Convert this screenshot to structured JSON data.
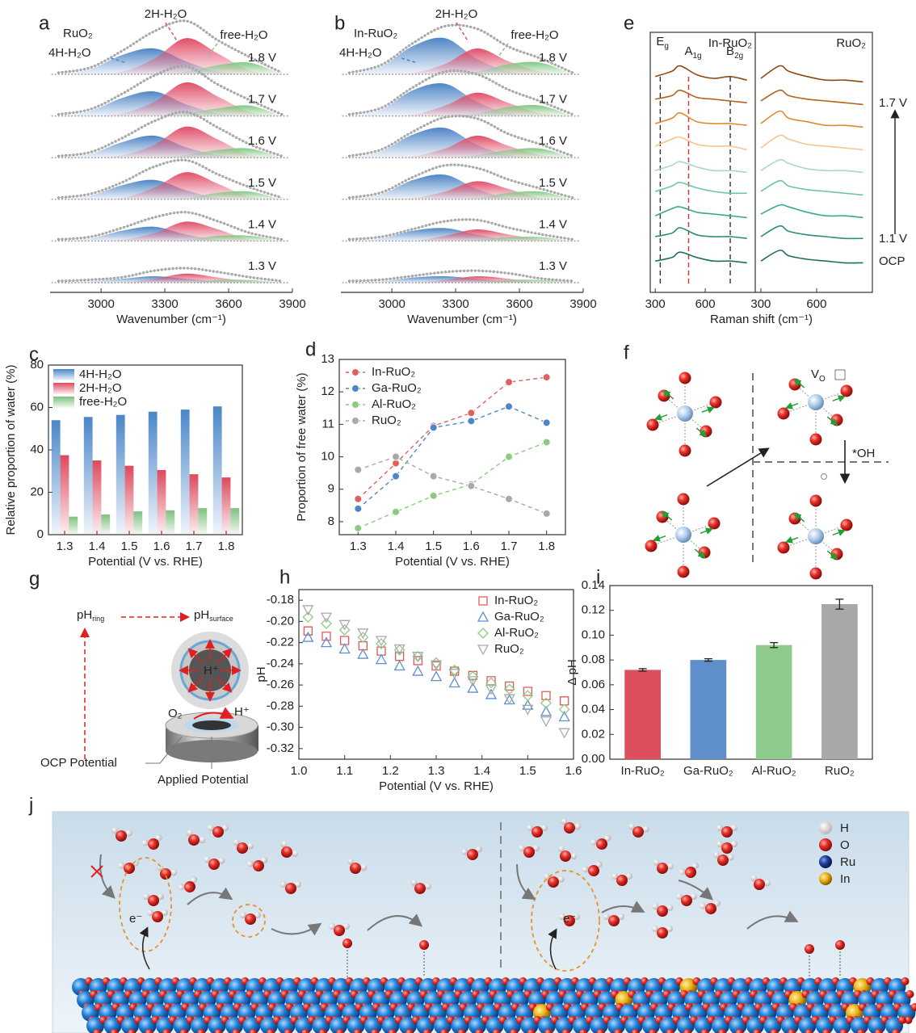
{
  "chart_data": [
    {
      "panel": "a",
      "type": "spectra",
      "title": "RuO₂",
      "x_label": "Wavenumber (cm⁻¹)",
      "x": [
        2800,
        2950,
        3100,
        3250,
        3400,
        3550,
        3700,
        3850
      ],
      "xlim": [
        2760,
        3900
      ],
      "xticks": [
        3000,
        3300,
        3600,
        3900
      ],
      "components": [
        {
          "name": "4H-H₂O",
          "color": "#4f86c6"
        },
        {
          "name": "2H-H₂O",
          "color": "#e0506a"
        },
        {
          "name": "free-H₂O",
          "color": "#82c785"
        }
      ],
      "traces": [
        {
          "label": "1.8 V",
          "values": [
            [
              0,
              4,
              15,
              20,
              10,
              2,
              0,
              0
            ],
            [
              0,
              0,
              2,
              12,
              28,
              16,
              3,
              0
            ],
            [
              0,
              0,
              0,
              0,
              2,
              7,
              9,
              0
            ]
          ]
        },
        {
          "label": "1.7 V",
          "values": [
            [
              0,
              4,
              14,
              19,
              9,
              2,
              0,
              0
            ],
            [
              0,
              0,
              2,
              11,
              26,
              15,
              3,
              0
            ],
            [
              0,
              0,
              0,
              0,
              2,
              6,
              8,
              0
            ]
          ]
        },
        {
          "label": "1.6 V",
          "values": [
            [
              0,
              3,
              12,
              17,
              8,
              2,
              0,
              0
            ],
            [
              0,
              0,
              2,
              10,
              24,
              14,
              2,
              0
            ],
            [
              0,
              0,
              0,
              0,
              2,
              6,
              7,
              0
            ]
          ]
        },
        {
          "label": "1.5 V",
          "values": [
            [
              0,
              3,
              11,
              15,
              7,
              1,
              0,
              0
            ],
            [
              0,
              0,
              1,
              9,
              21,
              12,
              2,
              0
            ],
            [
              0,
              0,
              0,
              0,
              1,
              5,
              6,
              0
            ]
          ]
        },
        {
          "label": "1.4 V",
          "values": [
            [
              0,
              2,
              8,
              11,
              5,
              1,
              0,
              0
            ],
            [
              0,
              0,
              1,
              6,
              15,
              9,
              1,
              0
            ],
            [
              0,
              0,
              0,
              0,
              1,
              4,
              4,
              0
            ]
          ]
        },
        {
          "label": "1.3 V",
          "values": [
            [
              0,
              1,
              3,
              5,
              3,
              1,
              0,
              0
            ],
            [
              0,
              0,
              0,
              3,
              7,
              4,
              1,
              0
            ],
            [
              0,
              0,
              0,
              0,
              0,
              2,
              2,
              0
            ]
          ]
        }
      ]
    },
    {
      "panel": "b",
      "type": "spectra",
      "title": "In-RuO₂",
      "x_label": "Wavenumber (cm⁻¹)",
      "x": [
        2800,
        2950,
        3100,
        3250,
        3400,
        3550,
        3700,
        3850
      ],
      "xlim": [
        2760,
        3900
      ],
      "xticks": [
        3000,
        3300,
        3600,
        3900
      ],
      "components": [
        {
          "name": "4H-H₂O",
          "color": "#4f86c6"
        },
        {
          "name": "2H-H₂O",
          "color": "#e0506a"
        },
        {
          "name": "free-H₂O",
          "color": "#82c785"
        }
      ],
      "traces": [
        {
          "label": "1.8 V",
          "values": [
            [
              0,
              6,
              22,
              28,
              12,
              2,
              0,
              0
            ],
            [
              0,
              0,
              1,
              8,
              20,
              10,
              2,
              0
            ],
            [
              0,
              0,
              0,
              0,
              2,
              8,
              9,
              0
            ]
          ]
        },
        {
          "label": "1.7 V",
          "values": [
            [
              0,
              5,
              20,
              25,
              11,
              2,
              0,
              0
            ],
            [
              0,
              0,
              1,
              8,
              18,
              10,
              2,
              0
            ],
            [
              0,
              0,
              0,
              0,
              2,
              7,
              8,
              0
            ]
          ]
        },
        {
          "label": "1.6 V",
          "values": [
            [
              0,
              5,
              18,
              23,
              10,
              2,
              0,
              0
            ],
            [
              0,
              0,
              1,
              7,
              17,
              9,
              2,
              0
            ],
            [
              0,
              0,
              0,
              0,
              2,
              6,
              7,
              0
            ]
          ]
        },
        {
          "label": "1.5 V",
          "values": [
            [
              0,
              4,
              15,
              19,
              8,
              1,
              0,
              0
            ],
            [
              0,
              0,
              1,
              6,
              14,
              8,
              1,
              0
            ],
            [
              0,
              0,
              0,
              0,
              1,
              5,
              6,
              0
            ]
          ]
        },
        {
          "label": "1.4 V",
          "values": [
            [
              0,
              2,
              8,
              10,
              5,
              1,
              0,
              0
            ],
            [
              0,
              0,
              0,
              4,
              9,
              5,
              1,
              0
            ],
            [
              0,
              0,
              0,
              0,
              1,
              3,
              3,
              0
            ]
          ]
        },
        {
          "label": "1.3 V",
          "values": [
            [
              0,
              1,
              4,
              5,
              3,
              1,
              0,
              0
            ],
            [
              0,
              0,
              0,
              2,
              5,
              3,
              0,
              0
            ],
            [
              0,
              0,
              0,
              0,
              0,
              2,
              2,
              0
            ]
          ]
        }
      ]
    },
    {
      "panel": "c",
      "type": "bar",
      "x_label": "Potential (V vs. RHE)",
      "y_label": "Relative proportion of water (%)",
      "categories": [
        "1.3",
        "1.4",
        "1.5",
        "1.6",
        "1.7",
        "1.8"
      ],
      "series": [
        {
          "name": "4H-H₂O",
          "color": "#4a86c8",
          "values": [
            54,
            55.5,
            56.5,
            58,
            59,
            60.5
          ]
        },
        {
          "name": "2H-H₂O",
          "color": "#dc4a5e",
          "values": [
            37.5,
            35,
            32.5,
            30.5,
            28.5,
            27
          ]
        },
        {
          "name": "free-H₂O",
          "color": "#7cc17e",
          "values": [
            8.5,
            9.5,
            11,
            11.5,
            12.5,
            12.5
          ]
        }
      ],
      "ylim": [
        0,
        80
      ],
      "yticks": [
        0,
        20,
        40,
        60,
        80
      ]
    },
    {
      "panel": "d",
      "type": "line",
      "x_label": "Potential (V vs. RHE)",
      "y_label": "Proportion of free water (%)",
      "x": [
        1.3,
        1.4,
        1.5,
        1.6,
        1.7,
        1.8
      ],
      "xlim": [
        1.25,
        1.85
      ],
      "xticks": [
        1.3,
        1.4,
        1.5,
        1.6,
        1.7,
        1.8
      ],
      "ylim": [
        7.6,
        13
      ],
      "yticks": [
        8,
        9,
        10,
        11,
        12,
        13
      ],
      "series": [
        {
          "name": "In-RuO₂",
          "color": "#e0605e",
          "values": [
            8.7,
            9.8,
            10.95,
            11.35,
            12.3,
            12.45
          ]
        },
        {
          "name": "Ga-RuO₂",
          "color": "#4d86c4",
          "values": [
            8.4,
            9.4,
            10.9,
            11.1,
            11.55,
            11.05
          ]
        },
        {
          "name": "Al-RuO₂",
          "color": "#8acb7f",
          "values": [
            7.8,
            8.3,
            8.8,
            9.15,
            10.0,
            10.45
          ]
        },
        {
          "name": "RuO₂",
          "color": "#a9a9a9",
          "values": [
            9.6,
            10.0,
            9.4,
            9.1,
            8.7,
            8.25
          ]
        }
      ]
    },
    {
      "panel": "e",
      "type": "raman",
      "x_label": "Raman shift (cm⁻¹)",
      "frames": [
        "In-RuO₂",
        "RuO₂"
      ],
      "x": [
        300,
        400,
        450,
        550,
        650,
        750,
        850
      ],
      "xlim": [
        270,
        900
      ],
      "xticks": [
        300,
        600
      ],
      "markers": [
        {
          "text": "E",
          "sub": "g",
          "x": 330,
          "color": "#333333"
        },
        {
          "text": "A",
          "sub": "1g",
          "x": 500,
          "color": "#d9302c"
        },
        {
          "text": "B",
          "sub": "2g",
          "x": 750,
          "color": "#333333"
        }
      ],
      "traces": [
        {
          "color": "#8b4a12",
          "left": [
            6,
            9,
            12,
            7,
            5,
            6,
            4
          ],
          "right": [
            5,
            12,
            9,
            6,
            4,
            4,
            3
          ]
        },
        {
          "color": "#b8621b",
          "label": "1.7 V",
          "left": [
            6,
            8,
            11,
            7,
            6,
            5,
            4
          ],
          "right": [
            5,
            11,
            8,
            6,
            5,
            4,
            3
          ]
        },
        {
          "color": "#e0892e",
          "left": [
            5,
            8,
            11,
            6,
            5,
            5,
            4
          ],
          "right": [
            5,
            12,
            8,
            6,
            4,
            4,
            3
          ]
        },
        {
          "color": "#f5c48f",
          "left": [
            5,
            9,
            10,
            6,
            5,
            5,
            3
          ],
          "right": [
            4,
            11,
            9,
            6,
            5,
            4,
            3
          ]
        },
        {
          "color": "#a7d8cc",
          "left": [
            4,
            7,
            9,
            6,
            4,
            4,
            3
          ],
          "right": [
            4,
            10,
            8,
            5,
            4,
            4,
            3
          ]
        },
        {
          "color": "#6cc4b0",
          "left": [
            5,
            8,
            10,
            7,
            5,
            4,
            4
          ],
          "right": [
            5,
            11,
            8,
            6,
            5,
            4,
            3
          ]
        },
        {
          "color": "#38a894",
          "left": [
            4,
            8,
            9,
            6,
            5,
            4,
            3
          ],
          "right": [
            5,
            10,
            9,
            6,
            4,
            4,
            3
          ]
        },
        {
          "color": "#2a8f7c",
          "label": "1.1 V",
          "left": [
            5,
            7,
            10,
            6,
            5,
            5,
            4
          ],
          "right": [
            5,
            11,
            8,
            6,
            5,
            4,
            4
          ]
        },
        {
          "color": "#1d6e62",
          "label": "OCP",
          "left": [
            4,
            6,
            9,
            6,
            4,
            4,
            3
          ],
          "right": [
            4,
            10,
            7,
            5,
            4,
            3,
            3
          ]
        }
      ]
    },
    {
      "panel": "h",
      "type": "scatter",
      "x_label": "Potential (V vs. RHE)",
      "y_label": "pH",
      "x": [
        1.02,
        1.06,
        1.1,
        1.14,
        1.18,
        1.22,
        1.26,
        1.3,
        1.34,
        1.38,
        1.42,
        1.46,
        1.5,
        1.54,
        1.58
      ],
      "xlim": [
        1.0,
        1.6
      ],
      "xticks": [
        {
          "value": 1,
          "label": "1.0"
        },
        1.1,
        1.2,
        1.3,
        1.4,
        1.5,
        1.6
      ],
      "ylim": [
        -0.33,
        -0.17
      ],
      "yticks": [
        -0.18,
        {
          "value": -0.2,
          "label": "-0.20"
        },
        -0.22,
        -0.24,
        -0.26,
        -0.28,
        {
          "value": -0.3,
          "label": "-0.30"
        },
        -0.32
      ],
      "series": [
        {
          "name": "In-RuO₂",
          "color": "#e05a5a",
          "marker": "square",
          "values": [
            -0.209,
            -0.214,
            -0.218,
            -0.223,
            -0.228,
            -0.233,
            -0.237,
            -0.242,
            -0.247,
            -0.251,
            -0.256,
            -0.261,
            -0.266,
            -0.27,
            -0.275
          ]
        },
        {
          "name": "Ga-RuO₂",
          "color": "#5b8fd0",
          "marker": "triangle",
          "values": [
            -0.215,
            -0.22,
            -0.226,
            -0.231,
            -0.236,
            -0.242,
            -0.247,
            -0.252,
            -0.258,
            -0.263,
            -0.269,
            -0.274,
            -0.279,
            -0.285,
            -0.29
          ]
        },
        {
          "name": "Al-RuO₂",
          "color": "#8ccc84",
          "marker": "diamond",
          "values": [
            -0.196,
            -0.202,
            -0.208,
            -0.215,
            -0.221,
            -0.227,
            -0.233,
            -0.239,
            -0.246,
            -0.252,
            -0.258,
            -0.264,
            -0.27,
            -0.277,
            -0.283
          ]
        },
        {
          "name": "RuO₂",
          "color": "#aaaaaa",
          "marker": "triangle-down",
          "values": [
            -0.189,
            -0.196,
            -0.203,
            -0.211,
            -0.218,
            -0.226,
            -0.233,
            -0.241,
            -0.249,
            -0.256,
            -0.264,
            -0.273,
            -0.283,
            -0.294,
            -0.305
          ]
        }
      ]
    },
    {
      "panel": "i",
      "type": "bar",
      "y_label": "Δ pH",
      "categories": [
        "In-RuO₂",
        "Ga-RuO₂",
        "Al-RuO₂",
        "RuO₂"
      ],
      "values": [
        0.072,
        0.08,
        0.092,
        0.125
      ],
      "errors": [
        0.001,
        0.001,
        0.002,
        0.004
      ],
      "colors": [
        "#dd4e5f",
        "#5f8fcb",
        "#8fcb8c",
        "#a8a8a8"
      ],
      "ylim": [
        0,
        0.14
      ],
      "yticks": [
        {
          "value": 0,
          "label": "0.00"
        },
        0.02,
        0.04,
        0.06,
        0.08,
        {
          "value": 0.1,
          "label": "0.10"
        },
        0.12,
        0.14
      ]
    }
  ],
  "diagrams": {
    "f": {
      "panel": "f",
      "vacancy": {
        "text": "V",
        "sub": "O"
      },
      "adsorbate": "*OH"
    },
    "g": {
      "panel": "g",
      "ring": {
        "text": "pH",
        "sub": "ring"
      },
      "surface": {
        "text": "pH",
        "sub": "surface"
      },
      "proton": "H⁺",
      "oxygen": "O₂",
      "ocp": "OCP Potential",
      "applied": "Applied Potential"
    },
    "j": {
      "panel": "j",
      "electron": "e⁻",
      "legend": [
        "H",
        "O",
        "Ru",
        "In"
      ]
    }
  }
}
